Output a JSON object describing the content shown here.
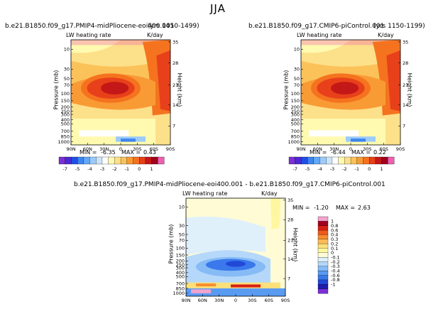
{
  "figure_title": "JJA",
  "colors": {
    "cb1": [
      "#7b2fd6",
      "#4a2ad0",
      "#1f4fe6",
      "#3d86f0",
      "#63a7f7",
      "#9ccaf9",
      "#c9e4fb",
      "#ffffff",
      "#fffab0",
      "#fde08a",
      "#fbc25a",
      "#f99b35",
      "#f5731f",
      "#e8401a",
      "#c41717",
      "#a0001e",
      "#ee5fb0"
    ],
    "cb2": [
      "#7b2fd6",
      "#1d1cad",
      "#2148d6",
      "#3a78ec",
      "#5a9bf2",
      "#86bbf6",
      "#b5d8fa",
      "#dff0fb",
      "#fffcd5",
      "#fff7a0",
      "#fde07a",
      "#fbba55",
      "#f88d31",
      "#f0581c",
      "#d81f14",
      "#a0001e",
      "#f3a3cf"
    ]
  },
  "chart_data": [
    {
      "type": "heatmap",
      "case_label": "b.e21.B1850.f09_g17.PMIP4-midPliocene-eoi400.001",
      "years_label": "(yrs 1450-1499)",
      "variable": "LW heating rate",
      "units": "K/day",
      "ylabel": "Pressure (mb)",
      "y2label": "Height (km)",
      "x_ticks": [
        "90N",
        "60N",
        "30N",
        "0",
        "30S",
        "60S",
        "90S"
      ],
      "y_ticks": [
        "10",
        "30",
        "50",
        "70",
        "100",
        "150",
        "200",
        "250",
        "300",
        "400",
        "500",
        "700",
        "850",
        "1000"
      ],
      "y2_ticks": [
        "35",
        "28",
        "21",
        "14",
        "7"
      ],
      "stats": {
        "min_label": "MIN =",
        "min": "-6.35",
        "max_label": "MAX =",
        "max": "0.43"
      },
      "colorbar_levels": [
        "-7",
        "-5",
        "-4",
        "-3",
        "-2",
        "-1",
        "0",
        "1"
      ]
    },
    {
      "type": "heatmap",
      "case_label": "b.e21.B1850.f09_g17.CMIP6-piControl.001",
      "years_label": "(yrs 1150-1199)",
      "variable": "LW heating rate",
      "units": "K/day",
      "ylabel": "Pressure (mb)",
      "y2label": "Height (km)",
      "x_ticks": [
        "90N",
        "60N",
        "30N",
        "0",
        "30S",
        "60S",
        "90S"
      ],
      "y_ticks": [
        "10",
        "30",
        "50",
        "70",
        "100",
        "150",
        "200",
        "250",
        "300",
        "400",
        "500",
        "700",
        "850",
        "1000"
      ],
      "y2_ticks": [
        "35",
        "28",
        "21",
        "14",
        "7"
      ],
      "stats": {
        "min_label": "MIN =",
        "min": "-6.44",
        "max_label": "MAX =",
        "max": "0.22"
      },
      "colorbar_levels": [
        "-7",
        "-5",
        "-4",
        "-3",
        "-2",
        "-1",
        "0",
        "1"
      ]
    },
    {
      "type": "heatmap",
      "case_label": "b.e21.B1850.f09_g17.PMIP4-midPliocene-eoi400.001  -  b.e21.B1850.f09_g17.CMIP6-piControl.001",
      "variable": "LW heating rate",
      "units": "K/day",
      "ylabel": "Pressure (mb)",
      "y2label": "Height (km)",
      "x_ticks": [
        "90N",
        "60N",
        "30N",
        "0",
        "30S",
        "60S",
        "90S"
      ],
      "y_ticks": [
        "10",
        "30",
        "50",
        "70",
        "100",
        "150",
        "200",
        "250",
        "300",
        "400",
        "500",
        "700",
        "850",
        "1000"
      ],
      "y2_ticks": [
        "35",
        "28",
        "21",
        "14",
        "7"
      ],
      "stats": {
        "min_label": "MIN =",
        "min": "-1.20",
        "max_label": "MAX =",
        "max": "2.63"
      },
      "colorbar_levels": [
        "1",
        "0.8",
        "0.6",
        "0.4",
        "0.3",
        "0.2",
        "0.1",
        "0",
        "-0.1",
        "-0.2",
        "-0.3",
        "-0.4",
        "-0.6",
        "-0.8",
        "-1"
      ]
    }
  ]
}
